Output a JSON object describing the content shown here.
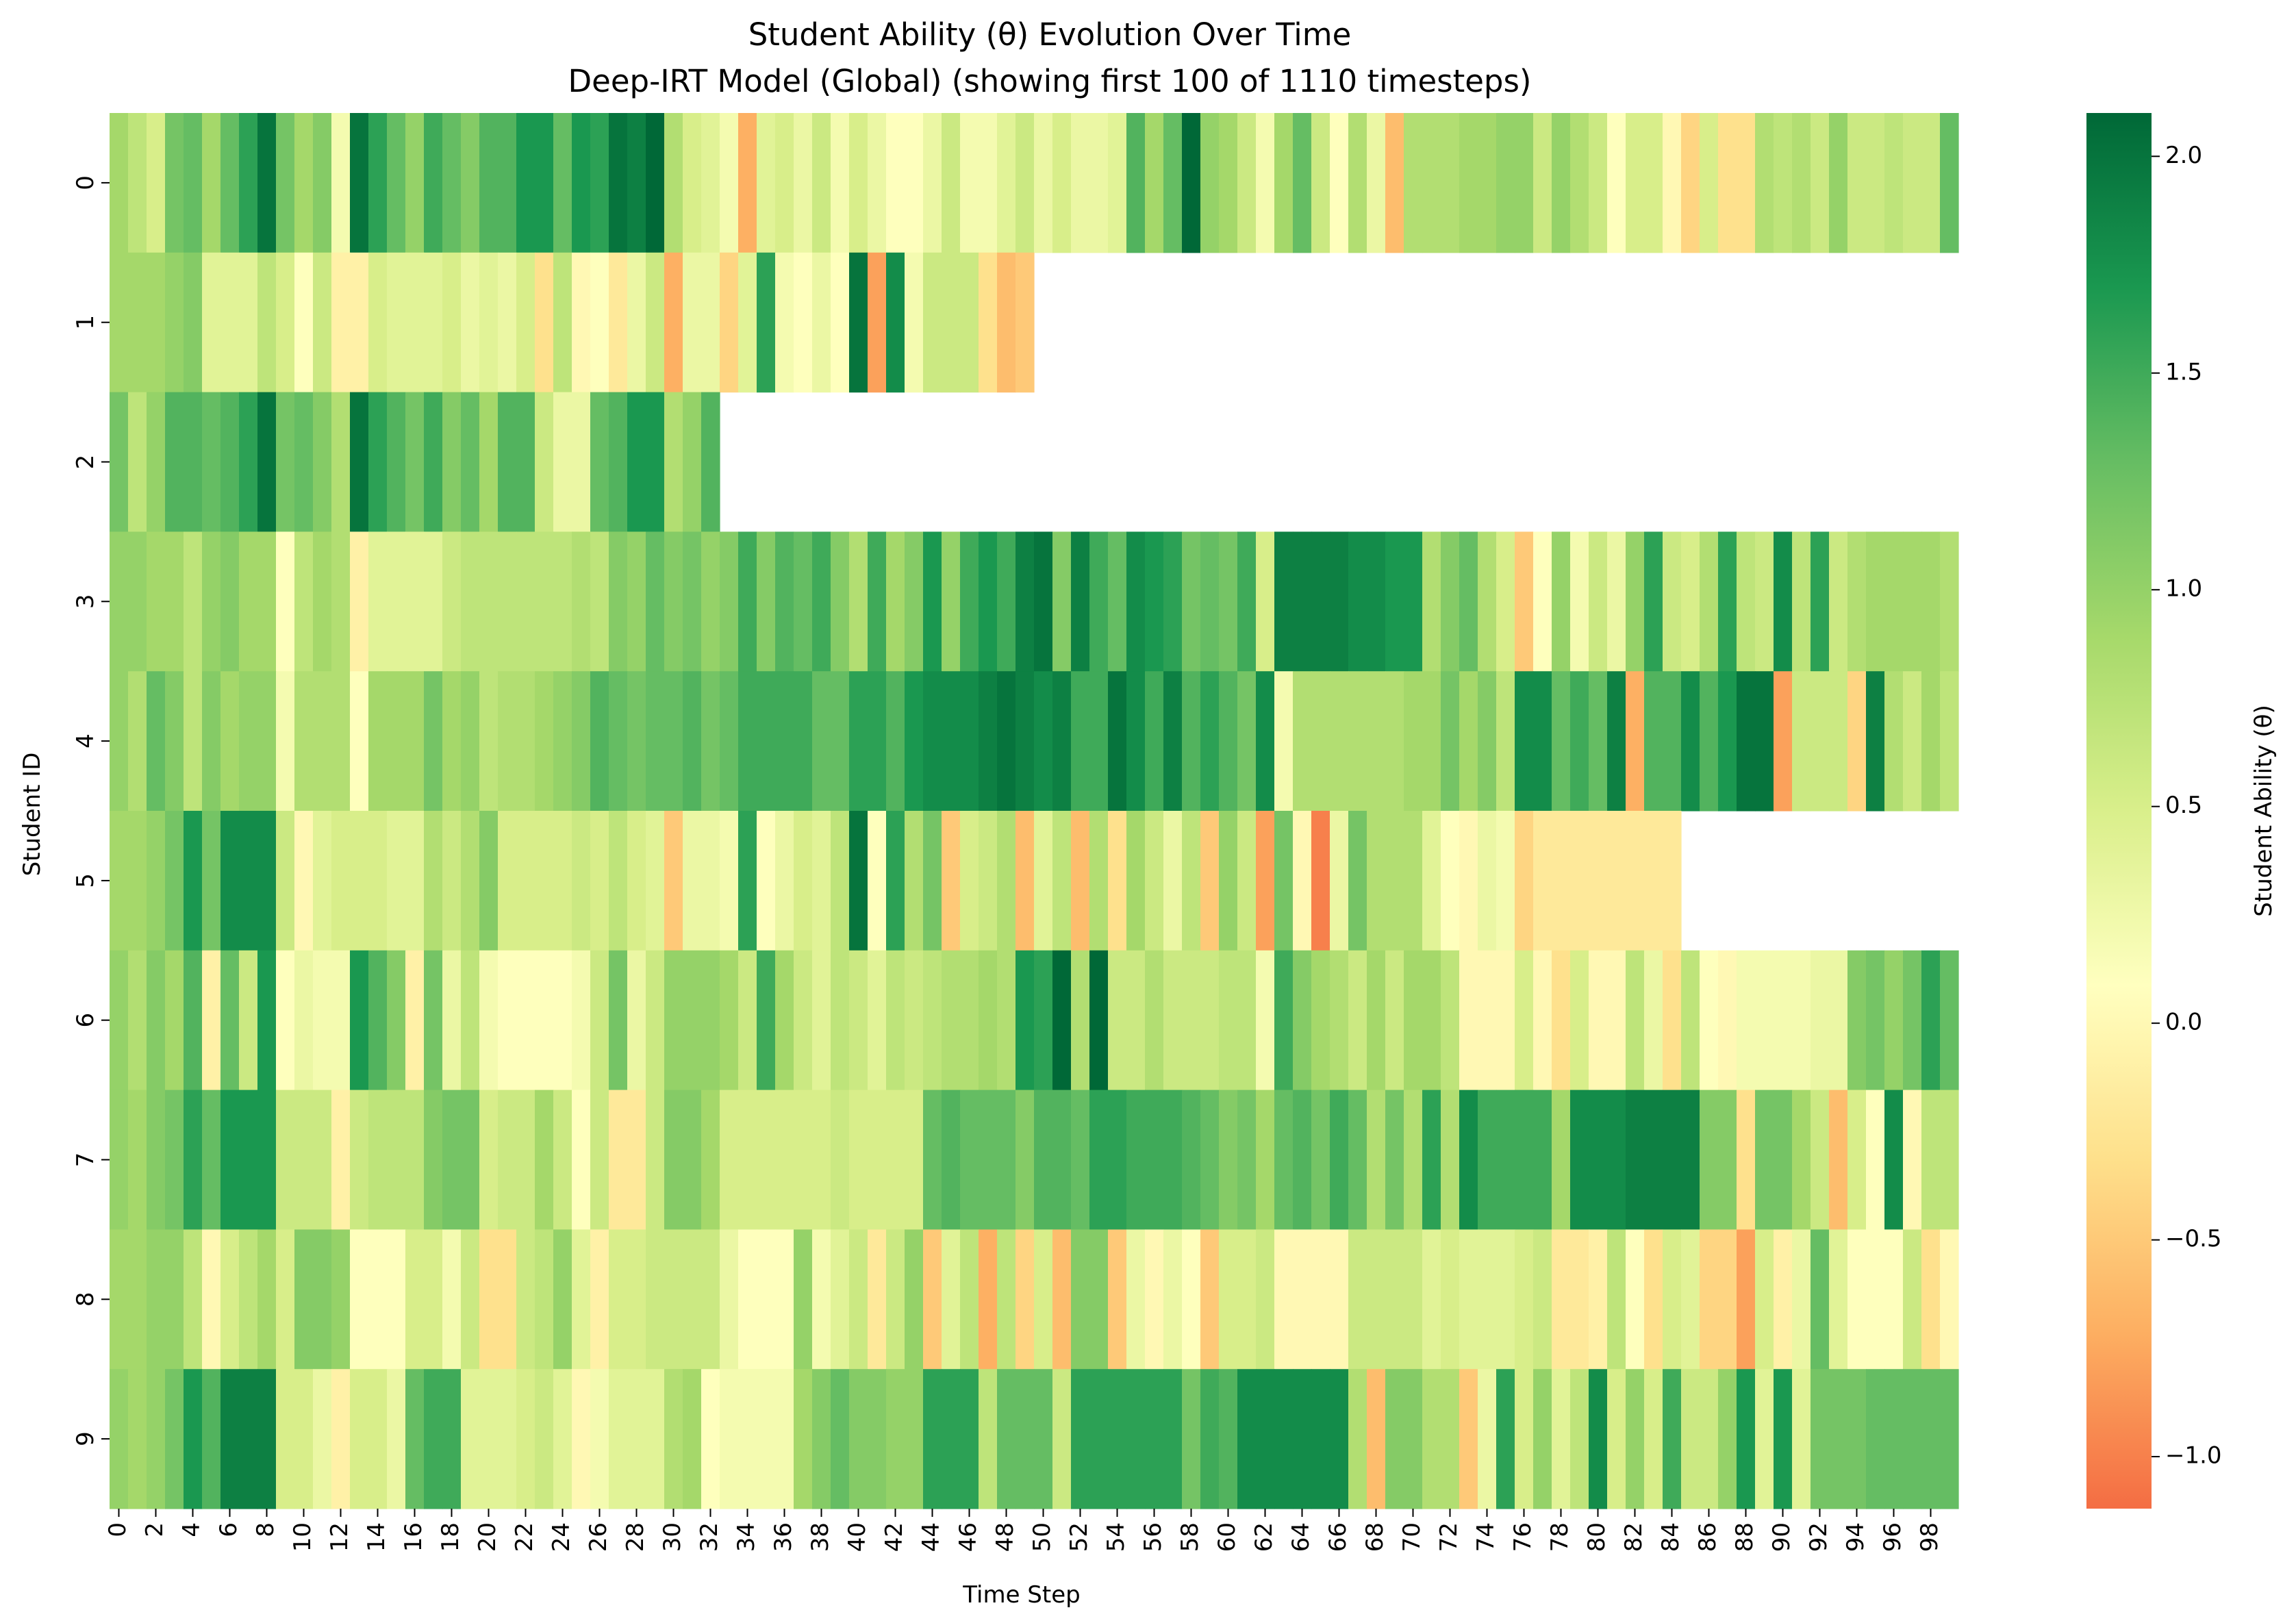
{
  "chart_data": {
    "type": "heatmap",
    "title": "Student Ability (θ) Evolution Over Time",
    "subtitle": "Deep-IRT Model (Global) (showing first 100 of 1110 timesteps)",
    "xlabel": "Time Step",
    "ylabel": "Student ID",
    "colorbar_label": "Student Ability (θ)",
    "colormap": "RdYlGn",
    "colorbar_range": [
      -1.12,
      2.1
    ],
    "colorbar_ticks": [
      "−1.0",
      "−0.5",
      "0.0",
      "0.5",
      "1.0",
      "1.5",
      "2.0"
    ],
    "colorbar_tick_values": [
      -1.0,
      -0.5,
      0.0,
      0.5,
      1.0,
      1.5,
      2.0
    ],
    "x_tick_labels": [
      "0",
      "2",
      "4",
      "6",
      "8",
      "10",
      "12",
      "14",
      "16",
      "18",
      "20",
      "22",
      "24",
      "26",
      "28",
      "30",
      "32",
      "34",
      "36",
      "38",
      "40",
      "42",
      "44",
      "46",
      "48",
      "50",
      "52",
      "54",
      "56",
      "58",
      "60",
      "62",
      "64",
      "66",
      "68",
      "70",
      "72",
      "74",
      "76",
      "78",
      "80",
      "82",
      "84",
      "86",
      "88",
      "90",
      "92",
      "94",
      "96",
      "98"
    ],
    "y_tick_labels": [
      "0",
      "1",
      "2",
      "3",
      "4",
      "5",
      "6",
      "7",
      "8",
      "9"
    ],
    "students": [
      "0",
      "1",
      "2",
      "3",
      "4",
      "5",
      "6",
      "7",
      "8",
      "9"
    ],
    "timesteps": 100,
    "values": [
      [
        0.9,
        0.7,
        0.5,
        1.2,
        1.3,
        0.9,
        1.3,
        1.6,
        2.0,
        1.2,
        0.9,
        1.1,
        0.2,
        2.0,
        1.6,
        1.3,
        1.0,
        1.5,
        1.3,
        1.1,
        1.4,
        1.4,
        1.7,
        1.7,
        1.3,
        1.7,
        1.6,
        2.0,
        1.9,
        2.1,
        0.8,
        0.5,
        0.4,
        0.2,
        -0.7,
        0.4,
        0.5,
        0.3,
        0.6,
        0.2,
        0.5,
        0.3,
        0.1,
        0.1,
        0.3,
        0.6,
        0.2,
        0.2,
        0.4,
        0.6,
        0.3,
        0.5,
        0.3,
        0.3,
        0.4,
        1.4,
        0.9,
        1.3,
        2.1,
        1.0,
        0.9,
        0.6,
        0.2,
        0.9,
        1.3,
        0.6,
        0.1,
        0.8,
        0.3,
        -0.6,
        0.8,
        0.8,
        0.8,
        0.9,
        0.9,
        1.0,
        1.0,
        0.6,
        1.0,
        0.8,
        0.6,
        0.1,
        0.5,
        0.5,
        0.0,
        -0.4,
        0.5,
        -0.3,
        -0.3,
        0.8,
        0.7,
        0.8,
        0.6,
        1.0,
        0.6,
        0.6,
        0.7,
        0.6,
        0.6,
        1.3
      ],
      [
        0.9,
        0.9,
        0.9,
        1.0,
        1.1,
        0.4,
        0.4,
        0.4,
        0.7,
        0.5,
        0.1,
        0.6,
        -0.1,
        -0.1,
        0.5,
        0.4,
        0.4,
        0.4,
        0.5,
        0.3,
        0.4,
        0.3,
        0.5,
        -0.3,
        0.7,
        0.0,
        0.1,
        -0.2,
        0.3,
        0.6,
        -0.7,
        0.3,
        0.3,
        -0.4,
        0.4,
        1.6,
        0.2,
        0.1,
        0.3,
        0.1,
        2.0,
        -0.8,
        1.8,
        0.2,
        0.6,
        0.6,
        0.6,
        -0.3,
        -0.6,
        -0.5,
        null,
        null,
        null,
        null,
        null,
        null,
        null,
        null,
        null,
        null,
        null,
        null,
        null,
        null,
        null,
        null,
        null,
        null,
        null,
        null,
        null,
        null,
        null,
        null,
        null,
        null,
        null,
        null,
        null,
        null,
        null,
        null,
        null,
        null,
        null,
        null,
        null,
        null,
        null,
        null,
        null,
        null,
        null,
        null,
        null,
        null,
        null,
        null,
        null,
        null
      ],
      [
        1.2,
        0.7,
        1.0,
        1.4,
        1.4,
        1.3,
        1.4,
        1.6,
        2.0,
        1.2,
        1.3,
        1.1,
        0.8,
        2.0,
        1.6,
        1.4,
        1.2,
        1.5,
        1.1,
        1.3,
        0.9,
        1.4,
        1.4,
        0.6,
        0.3,
        0.3,
        1.3,
        1.4,
        1.7,
        1.7,
        0.8,
        1.0,
        1.4,
        null,
        null,
        null,
        null,
        null,
        null,
        null,
        null,
        null,
        null,
        null,
        null,
        null,
        null,
        null,
        null,
        null,
        null,
        null,
        null,
        null,
        null,
        null,
        null,
        null,
        null,
        null,
        null,
        null,
        null,
        null,
        null,
        null,
        null,
        null,
        null,
        null,
        null,
        null,
        null,
        null,
        null,
        null,
        null,
        null,
        null,
        null,
        null,
        null,
        null,
        null,
        null,
        null,
        null,
        null,
        null,
        null,
        null,
        null,
        null,
        null,
        null,
        null,
        null,
        null,
        null,
        null
      ],
      [
        1.0,
        1.0,
        0.9,
        0.9,
        0.7,
        1.0,
        1.1,
        0.9,
        0.9,
        0.1,
        0.7,
        0.9,
        0.8,
        -0.1,
        0.4,
        0.4,
        0.4,
        0.4,
        0.6,
        0.7,
        0.7,
        0.7,
        0.7,
        0.7,
        0.7,
        0.8,
        0.7,
        1.1,
        1.0,
        1.3,
        1.1,
        1.2,
        1.0,
        1.1,
        1.5,
        1.1,
        1.4,
        1.3,
        1.5,
        1.1,
        0.8,
        1.5,
        0.9,
        1.1,
        1.7,
        1.0,
        1.5,
        1.7,
        1.5,
        1.9,
        2.0,
        1.1,
        1.9,
        1.5,
        1.3,
        1.8,
        1.7,
        1.6,
        1.2,
        1.3,
        1.2,
        1.5,
        0.5,
        1.9,
        1.9,
        1.9,
        1.9,
        1.8,
        1.8,
        1.7,
        1.7,
        0.8,
        1.1,
        1.3,
        0.8,
        0.5,
        -0.5,
        0.1,
        1.0,
        0.2,
        0.6,
        0.3,
        1.0,
        1.6,
        0.6,
        0.5,
        0.8,
        1.6,
        0.7,
        0.6,
        1.8,
        0.7,
        1.6,
        0.6,
        0.8,
        0.9,
        0.9,
        0.9,
        0.9,
        0.8
      ],
      [
        1.0,
        0.8,
        1.3,
        1.1,
        0.7,
        1.1,
        0.9,
        1.0,
        1.0,
        0.2,
        0.8,
        0.8,
        0.8,
        0.1,
        0.9,
        0.9,
        0.9,
        1.2,
        0.9,
        1.0,
        0.7,
        0.8,
        0.8,
        0.9,
        1.0,
        1.1,
        1.4,
        1.3,
        1.2,
        1.3,
        1.3,
        1.4,
        1.2,
        1.3,
        1.5,
        1.5,
        1.5,
        1.5,
        1.3,
        1.3,
        1.6,
        1.6,
        1.4,
        1.7,
        1.8,
        1.8,
        1.8,
        1.9,
        2.0,
        1.9,
        1.8,
        1.9,
        1.5,
        1.5,
        2.0,
        1.8,
        1.5,
        1.9,
        1.4,
        1.6,
        1.4,
        1.2,
        1.8,
        0.2,
        0.8,
        0.8,
        0.8,
        0.8,
        0.8,
        0.8,
        0.9,
        0.9,
        1.2,
        0.9,
        1.1,
        0.7,
        1.8,
        1.8,
        1.3,
        1.5,
        1.3,
        1.9,
        -0.7,
        1.4,
        1.4,
        1.8,
        1.4,
        1.7,
        2.0,
        2.0,
        -0.8,
        0.6,
        0.6,
        0.6,
        -0.4,
        1.9,
        0.8,
        0.6,
        0.9,
        0.7
      ],
      [
        0.9,
        0.9,
        1.0,
        1.2,
        1.7,
        1.2,
        1.8,
        1.8,
        1.8,
        0.6,
        0.0,
        0.4,
        0.5,
        0.5,
        0.5,
        0.4,
        0.4,
        0.8,
        0.6,
        0.8,
        1.1,
        0.5,
        0.5,
        0.5,
        0.5,
        0.6,
        0.5,
        0.7,
        0.5,
        0.4,
        -0.5,
        0.3,
        0.3,
        0.2,
        1.6,
        0.1,
        0.3,
        0.5,
        0.4,
        0.7,
        2.0,
        0.1,
        1.6,
        0.8,
        1.2,
        -0.5,
        0.5,
        0.6,
        0.8,
        -0.6,
        0.4,
        0.7,
        -0.6,
        0.8,
        -0.3,
        0.9,
        0.6,
        0.3,
        0.7,
        -0.5,
        1.0,
        0.6,
        -0.8,
        1.2,
        0.0,
        -1.0,
        0.3,
        1.2,
        0.8,
        0.8,
        0.8,
        0.4,
        0.1,
        0.0,
        0.3,
        0.2,
        -0.4,
        -0.2,
        -0.2,
        -0.2,
        -0.2,
        -0.2,
        -0.2,
        -0.2,
        -0.2,
        null,
        null,
        null,
        null,
        null,
        null,
        null,
        null,
        null,
        null,
        null,
        null,
        null,
        null,
        null
      ],
      [
        1.0,
        0.8,
        1.1,
        0.9,
        1.4,
        -0.1,
        1.3,
        0.6,
        1.7,
        0.1,
        0.3,
        0.2,
        0.2,
        1.7,
        1.4,
        1.1,
        -0.1,
        1.2,
        0.3,
        0.7,
        0.2,
        0.1,
        0.1,
        0.1,
        0.1,
        0.2,
        0.6,
        1.2,
        0.3,
        0.6,
        1.0,
        1.0,
        1.0,
        0.9,
        0.6,
        1.5,
        0.9,
        0.6,
        0.4,
        0.7,
        0.6,
        0.4,
        0.7,
        0.6,
        0.7,
        0.8,
        0.8,
        0.9,
        0.8,
        1.7,
        1.6,
        2.1,
        0.8,
        2.2,
        0.6,
        0.6,
        0.8,
        0.6,
        0.6,
        0.6,
        0.7,
        0.7,
        0.2,
        1.5,
        1.1,
        0.9,
        0.8,
        0.6,
        0.9,
        0.6,
        0.9,
        0.9,
        0.7,
        0.0,
        0.0,
        0.0,
        0.5,
        0.0,
        -0.3,
        0.5,
        0.0,
        0.0,
        0.7,
        0.3,
        -0.3,
        0.7,
        0.1,
        0.0,
        0.2,
        0.2,
        0.2,
        0.2,
        0.3,
        0.3,
        1.1,
        1.2,
        1.0,
        1.2,
        1.6,
        1.3
      ],
      [
        1.0,
        0.9,
        1.1,
        1.2,
        1.6,
        1.3,
        1.7,
        1.7,
        1.7,
        0.6,
        0.6,
        0.6,
        -0.1,
        0.6,
        0.7,
        0.7,
        0.7,
        1.1,
        1.2,
        1.2,
        0.5,
        0.6,
        0.6,
        0.9,
        0.6,
        0.1,
        0.6,
        -0.2,
        -0.2,
        0.6,
        1.1,
        1.1,
        0.9,
        0.5,
        0.5,
        0.5,
        0.5,
        0.5,
        0.5,
        0.6,
        0.5,
        0.5,
        0.5,
        0.5,
        1.3,
        1.4,
        1.3,
        1.3,
        1.3,
        1.1,
        1.4,
        1.4,
        1.3,
        1.6,
        1.6,
        1.5,
        1.5,
        1.5,
        1.4,
        1.3,
        1.1,
        1.2,
        0.9,
        1.3,
        1.4,
        1.2,
        1.5,
        1.3,
        0.8,
        1.2,
        0.8,
        1.6,
        0.8,
        1.8,
        1.5,
        1.5,
        1.5,
        1.5,
        0.9,
        1.8,
        1.8,
        1.8,
        1.9,
        1.9,
        1.9,
        1.9,
        1.1,
        1.1,
        -0.3,
        1.2,
        1.2,
        0.9,
        0.6,
        -0.6,
        0.5,
        0.1,
        1.8,
        0.0,
        0.7,
        0.7
      ],
      [
        0.9,
        0.9,
        1.0,
        1.0,
        0.7,
        0.0,
        0.5,
        0.7,
        0.9,
        0.5,
        1.1,
        1.1,
        1.0,
        0.1,
        0.1,
        0.1,
        0.5,
        0.5,
        0.2,
        0.6,
        -0.3,
        -0.3,
        0.6,
        0.7,
        1.0,
        0.4,
        -0.1,
        0.5,
        0.5,
        0.6,
        0.6,
        0.6,
        0.6,
        0.3,
        0.1,
        0.1,
        0.1,
        1.0,
        0.2,
        0.4,
        0.6,
        -0.2,
        0.6,
        1.0,
        -0.5,
        0.4,
        0.7,
        -0.7,
        0.7,
        -0.4,
        0.5,
        -0.6,
        1.1,
        1.1,
        -0.5,
        0.3,
        0.0,
        0.3,
        0.1,
        -0.5,
        0.5,
        0.5,
        0.6,
        0.0,
        0.0,
        0.0,
        0.0,
        0.6,
        0.6,
        0.6,
        0.6,
        0.4,
        0.5,
        0.4,
        0.4,
        0.4,
        0.5,
        0.6,
        -0.2,
        -0.2,
        -0.1,
        0.7,
        0.1,
        -0.3,
        0.5,
        0.4,
        -0.4,
        -0.4,
        -0.8,
        0.5,
        -0.1,
        0.3,
        1.3,
        0.4,
        0.1,
        0.1,
        0.1,
        0.6,
        -0.3,
        0.0
      ],
      [
        1.0,
        0.9,
        1.0,
        1.2,
        1.7,
        1.4,
        1.9,
        1.9,
        1.9,
        0.5,
        0.5,
        0.3,
        -0.1,
        0.5,
        0.5,
        0.3,
        1.3,
        1.5,
        1.5,
        0.4,
        0.4,
        0.4,
        0.5,
        0.6,
        0.4,
        0.0,
        0.2,
        0.4,
        0.4,
        0.4,
        0.8,
        0.9,
        0.1,
        0.2,
        0.2,
        0.2,
        0.2,
        0.9,
        1.1,
        1.3,
        1.1,
        1.1,
        1.0,
        1.0,
        1.6,
        1.6,
        1.6,
        0.7,
        1.3,
        1.3,
        1.3,
        0.6,
        1.6,
        1.6,
        1.6,
        1.6,
        1.6,
        1.6,
        1.2,
        1.5,
        1.4,
        1.8,
        1.8,
        1.8,
        1.8,
        1.8,
        1.8,
        0.8,
        -0.6,
        1.1,
        1.1,
        0.8,
        0.8,
        -0.5,
        0.3,
        1.6,
        0.5,
        1.0,
        0.4,
        0.7,
        1.8,
        0.5,
        1.0,
        0.5,
        1.5,
        0.6,
        0.6,
        1.0,
        1.7,
        0.4,
        1.7,
        0.4,
        1.2,
        1.2,
        1.2,
        1.3,
        1.3,
        1.3,
        1.3,
        1.3
      ]
    ]
  }
}
